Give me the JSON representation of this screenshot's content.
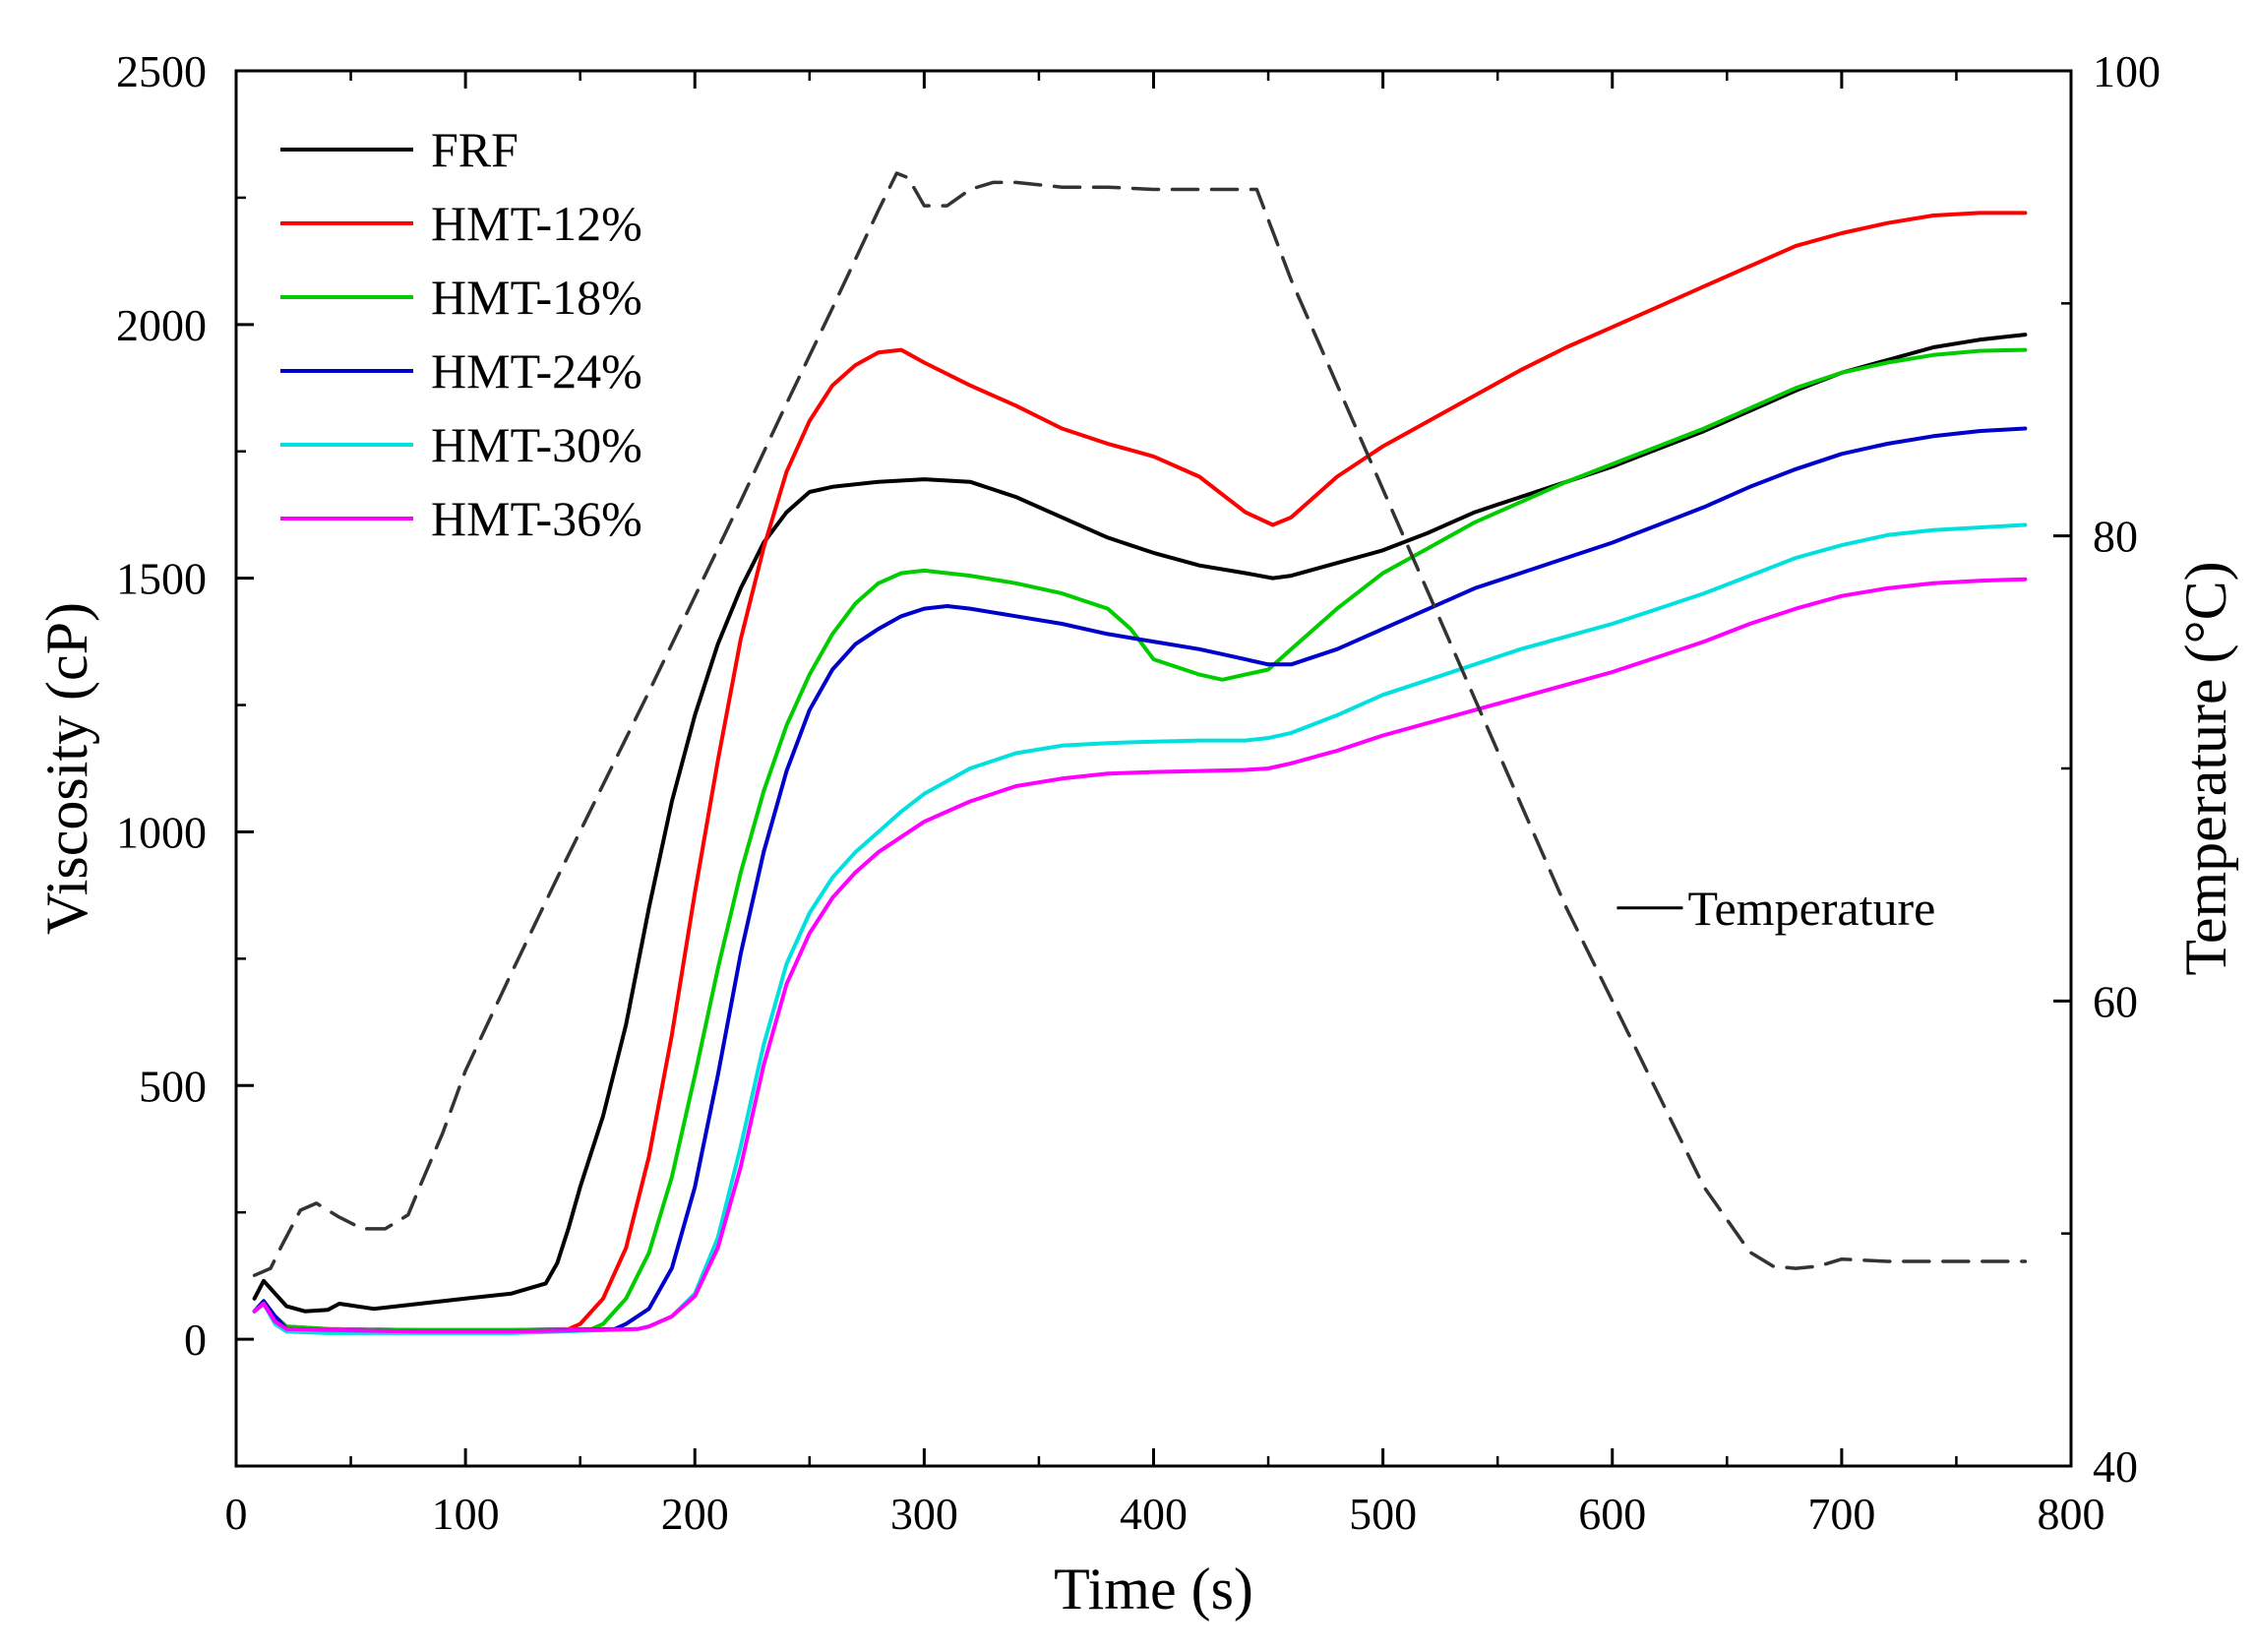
{
  "chart_data": {
    "type": "line",
    "xlabel": "Time (s)",
    "ylabel": "Viscosity (cP)",
    "y2label": "Temperature (°C)",
    "xlim": [
      0,
      800
    ],
    "ylim": [
      -250,
      2500
    ],
    "y2lim": [
      40,
      100
    ],
    "xticks": [
      0,
      100,
      200,
      300,
      400,
      500,
      600,
      700,
      800
    ],
    "yticks": [
      0,
      500,
      1000,
      1500,
      2000,
      2500
    ],
    "y2ticks": [
      40,
      60,
      80,
      100
    ],
    "grid": false,
    "legend": "top-left",
    "series": [
      {
        "name": "FRF",
        "color": "#000000",
        "x": [
          8,
          12,
          17,
          22,
          30,
          40,
          45,
          60,
          80,
          100,
          120,
          135,
          140,
          145,
          150,
          160,
          170,
          180,
          190,
          200,
          210,
          220,
          230,
          240,
          250,
          260,
          280,
          300,
          320,
          340,
          360,
          380,
          400,
          420,
          440,
          452,
          460,
          480,
          500,
          520,
          540,
          560,
          580,
          600,
          620,
          640,
          660,
          680,
          700,
          720,
          740,
          760,
          780
        ],
        "y": [
          80,
          115,
          90,
          65,
          55,
          58,
          70,
          60,
          70,
          80,
          90,
          110,
          150,
          220,
          300,
          440,
          620,
          850,
          1060,
          1230,
          1370,
          1480,
          1570,
          1630,
          1670,
          1680,
          1690,
          1695,
          1690,
          1660,
          1620,
          1580,
          1550,
          1525,
          1510,
          1500,
          1505,
          1530,
          1555,
          1590,
          1630,
          1660,
          1690,
          1720,
          1755,
          1790,
          1830,
          1870,
          1905,
          1930,
          1955,
          1970,
          1980
        ]
      },
      {
        "name": "HMT-12%",
        "color": "#ff0000",
        "x": [
          8,
          12,
          17,
          22,
          40,
          80,
          120,
          145,
          150,
          160,
          170,
          180,
          190,
          200,
          210,
          220,
          230,
          240,
          250,
          260,
          270,
          280,
          290,
          300,
          320,
          340,
          360,
          380,
          400,
          420,
          440,
          452,
          460,
          480,
          500,
          520,
          540,
          560,
          580,
          600,
          620,
          640,
          660,
          680,
          700,
          720,
          740,
          760,
          780
        ],
        "y": [
          55,
          75,
          45,
          25,
          20,
          18,
          18,
          20,
          30,
          80,
          180,
          360,
          600,
          880,
          1140,
          1380,
          1560,
          1710,
          1810,
          1880,
          1920,
          1945,
          1950,
          1925,
          1880,
          1840,
          1795,
          1765,
          1740,
          1700,
          1630,
          1605,
          1620,
          1700,
          1760,
          1810,
          1860,
          1910,
          1955,
          1995,
          2035,
          2075,
          2115,
          2155,
          2180,
          2200,
          2215,
          2220,
          2220
        ]
      },
      {
        "name": "HMT-18%",
        "color": "#00cc00",
        "x": [
          8,
          12,
          17,
          22,
          40,
          80,
          120,
          155,
          160,
          170,
          180,
          190,
          200,
          210,
          220,
          230,
          240,
          250,
          260,
          270,
          280,
          290,
          300,
          320,
          340,
          360,
          380,
          390,
          400,
          410,
          420,
          430,
          440,
          450,
          460,
          480,
          500,
          520,
          540,
          560,
          580,
          600,
          620,
          640,
          660,
          680,
          700,
          720,
          740,
          760,
          780
        ],
        "y": [
          55,
          75,
          45,
          25,
          20,
          18,
          18,
          20,
          30,
          80,
          170,
          320,
          520,
          730,
          920,
          1080,
          1210,
          1310,
          1390,
          1450,
          1490,
          1510,
          1515,
          1505,
          1490,
          1470,
          1440,
          1400,
          1340,
          1325,
          1310,
          1300,
          1310,
          1320,
          1360,
          1440,
          1510,
          1560,
          1610,
          1650,
          1690,
          1725,
          1760,
          1795,
          1835,
          1875,
          1905,
          1925,
          1940,
          1948,
          1950
        ]
      },
      {
        "name": "HMT-24%",
        "color": "#0000cc",
        "x": [
          8,
          12,
          17,
          22,
          40,
          80,
          120,
          165,
          170,
          180,
          190,
          200,
          210,
          220,
          230,
          240,
          250,
          260,
          270,
          280,
          290,
          300,
          310,
          320,
          340,
          360,
          380,
          400,
          420,
          440,
          450,
          460,
          480,
          500,
          520,
          540,
          560,
          580,
          600,
          620,
          640,
          660,
          680,
          700,
          720,
          740,
          760,
          780
        ],
        "y": [
          55,
          75,
          45,
          20,
          18,
          15,
          15,
          20,
          30,
          60,
          140,
          300,
          520,
          760,
          960,
          1120,
          1240,
          1320,
          1370,
          1400,
          1425,
          1440,
          1445,
          1440,
          1425,
          1410,
          1390,
          1375,
          1360,
          1340,
          1330,
          1330,
          1360,
          1400,
          1440,
          1480,
          1510,
          1540,
          1570,
          1605,
          1640,
          1680,
          1715,
          1745,
          1765,
          1780,
          1790,
          1795
        ]
      },
      {
        "name": "HMT-30%",
        "color": "#00e0e0",
        "x": [
          8,
          12,
          17,
          22,
          40,
          80,
          120,
          175,
          180,
          190,
          200,
          210,
          220,
          230,
          240,
          250,
          260,
          270,
          280,
          290,
          300,
          320,
          340,
          360,
          380,
          400,
          420,
          440,
          450,
          460,
          480,
          500,
          520,
          540,
          560,
          580,
          600,
          620,
          640,
          660,
          680,
          700,
          720,
          740,
          760,
          780
        ],
        "y": [
          55,
          70,
          30,
          15,
          12,
          12,
          12,
          20,
          25,
          45,
          90,
          200,
          380,
          580,
          740,
          840,
          910,
          960,
          1000,
          1040,
          1075,
          1125,
          1155,
          1170,
          1175,
          1178,
          1180,
          1180,
          1185,
          1195,
          1230,
          1270,
          1300,
          1330,
          1360,
          1385,
          1410,
          1440,
          1470,
          1505,
          1540,
          1565,
          1585,
          1595,
          1600,
          1605
        ]
      },
      {
        "name": "HMT-36%",
        "color": "#ff00ff",
        "x": [
          8,
          12,
          17,
          22,
          40,
          80,
          120,
          175,
          180,
          190,
          200,
          210,
          220,
          230,
          240,
          250,
          260,
          270,
          280,
          290,
          300,
          320,
          340,
          360,
          380,
          400,
          420,
          440,
          450,
          460,
          480,
          500,
          520,
          540,
          560,
          580,
          600,
          620,
          640,
          660,
          680,
          700,
          720,
          740,
          760,
          780
        ],
        "y": [
          55,
          70,
          35,
          20,
          18,
          15,
          15,
          20,
          25,
          45,
          85,
          180,
          340,
          540,
          700,
          800,
          870,
          920,
          960,
          990,
          1020,
          1060,
          1090,
          1105,
          1115,
          1118,
          1120,
          1122,
          1125,
          1135,
          1160,
          1190,
          1215,
          1240,
          1265,
          1290,
          1315,
          1345,
          1375,
          1410,
          1440,
          1465,
          1480,
          1490,
          1495,
          1498
        ]
      },
      {
        "name": "Temperature",
        "color": "#333333",
        "axis": "right",
        "dashed": true,
        "x": [
          8,
          15,
          20,
          28,
          35,
          45,
          55,
          65,
          75,
          80,
          90,
          100,
          120,
          140,
          160,
          180,
          200,
          220,
          240,
          260,
          280,
          288,
          293,
          300,
          310,
          320,
          330,
          340,
          360,
          380,
          400,
          420,
          430,
          438,
          445,
          460,
          480,
          500,
          520,
          540,
          560,
          580,
          600,
          620,
          640,
          660,
          670,
          680,
          690,
          700,
          720,
          740,
          760,
          780
        ],
        "y": [
          48.2,
          48.5,
          49.5,
          51,
          51.3,
          50.7,
          50.2,
          50.2,
          50.8,
          52,
          54.3,
          57,
          61.2,
          65.3,
          69.3,
          73.3,
          77.4,
          81.5,
          85.7,
          89.8,
          94,
          95.6,
          95.4,
          94.2,
          94.2,
          94.9,
          95.2,
          95.2,
          95.0,
          95.0,
          94.9,
          94.9,
          94.9,
          94.9,
          94.9,
          91.0,
          86.5,
          82.0,
          77.5,
          73.0,
          68.5,
          64.0,
          60.0,
          56.0,
          52.0,
          49.2,
          48.6,
          48.5,
          48.6,
          48.9,
          48.8,
          48.8,
          48.8,
          48.8
        ]
      }
    ],
    "annotations": [
      {
        "text": "Temperature",
        "x": 590,
        "y2": 64
      }
    ]
  }
}
